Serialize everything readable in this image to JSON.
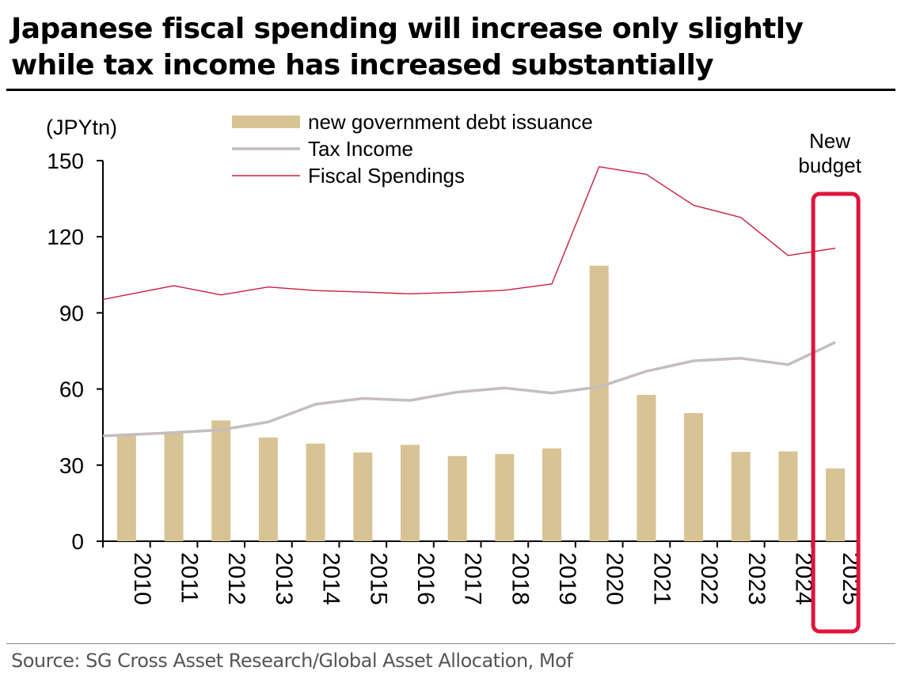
{
  "title": "Japanese fiscal spending will increase only slightly while tax income has increased substantially",
  "source": "Source: SG Cross Asset Research/Global Asset Allocation, Mof",
  "colors": {
    "bars": "#D8C394",
    "tax": "#C4BEBE",
    "spending": "#C8203A",
    "highlight": "#E0143C"
  },
  "chart_data": {
    "type": "bar",
    "unit_label": "(JPYtn)",
    "categories": [
      "2010",
      "2011",
      "2012",
      "2013",
      "2014",
      "2015",
      "2016",
      "2017",
      "2018",
      "2019",
      "2020",
      "2021",
      "2022",
      "2023",
      "2024",
      "2025"
    ],
    "ylim": [
      0,
      150
    ],
    "yticks": [
      0,
      30,
      60,
      90,
      120,
      150
    ],
    "series": [
      {
        "name": "new government debt issuance",
        "type": "bar",
        "values": [
          42.3,
          42.8,
          47.6,
          40.9,
          38.5,
          35.0,
          38.0,
          33.6,
          34.4,
          36.6,
          108.6,
          57.7,
          50.5,
          35.2,
          35.4,
          28.7
        ]
      },
      {
        "name": "Tax Income",
        "type": "line",
        "values": [
          41.5,
          42.8,
          43.9,
          47.0,
          54.0,
          56.3,
          55.5,
          58.8,
          60.4,
          58.4,
          60.8,
          67.0,
          71.1,
          72.1,
          69.6,
          78.4
        ]
      },
      {
        "name": "Fiscal Spendings",
        "type": "line",
        "values": [
          95.3,
          100.7,
          97.1,
          100.2,
          98.8,
          98.2,
          97.5,
          98.1,
          98.9,
          101.4,
          147.6,
          144.6,
          132.4,
          127.6,
          112.6,
          115.5
        ]
      }
    ],
    "annotation": {
      "label": "New budget",
      "category": "2025"
    },
    "legend_position": "top-center",
    "grid": false
  }
}
